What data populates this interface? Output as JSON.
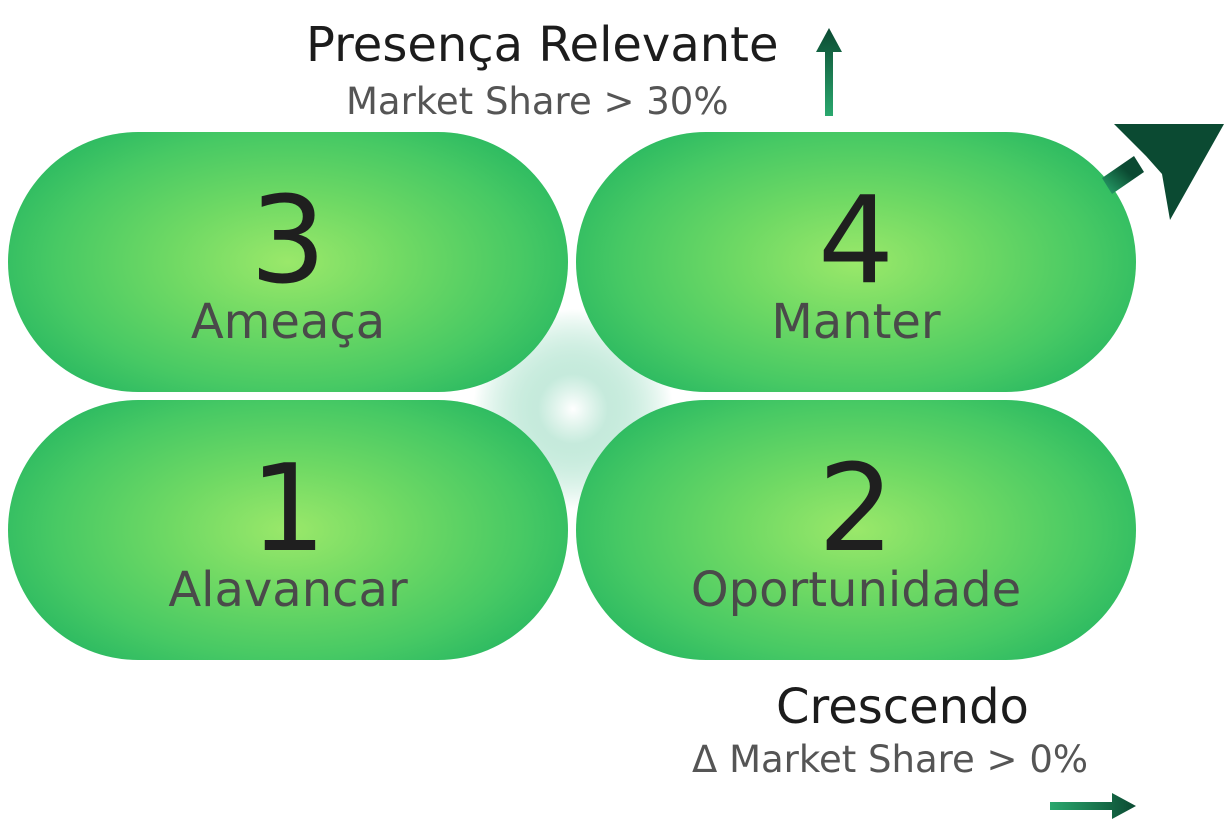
{
  "vertical_axis": {
    "title": "Presença Relevante",
    "subtitle": "Market Share > 30%"
  },
  "horizontal_axis": {
    "title": "Crescendo",
    "subtitle": "Δ Market Share > 0%"
  },
  "quadrants": {
    "top_left": {
      "number": "3",
      "label": "Ameaça"
    },
    "top_right": {
      "number": "4",
      "label": "Manter"
    },
    "bottom_left": {
      "number": "1",
      "label": "Alavancar"
    },
    "bottom_right": {
      "number": "2",
      "label": "Oportunidade"
    }
  },
  "colors": {
    "arrow_dark": "#0b4a32",
    "arrow_light": "#2aa86e",
    "pill_center": "#9ae86a",
    "pill_edge": "#22b461",
    "text_dark": "#1c1c1c",
    "text_gray": "#555555"
  }
}
